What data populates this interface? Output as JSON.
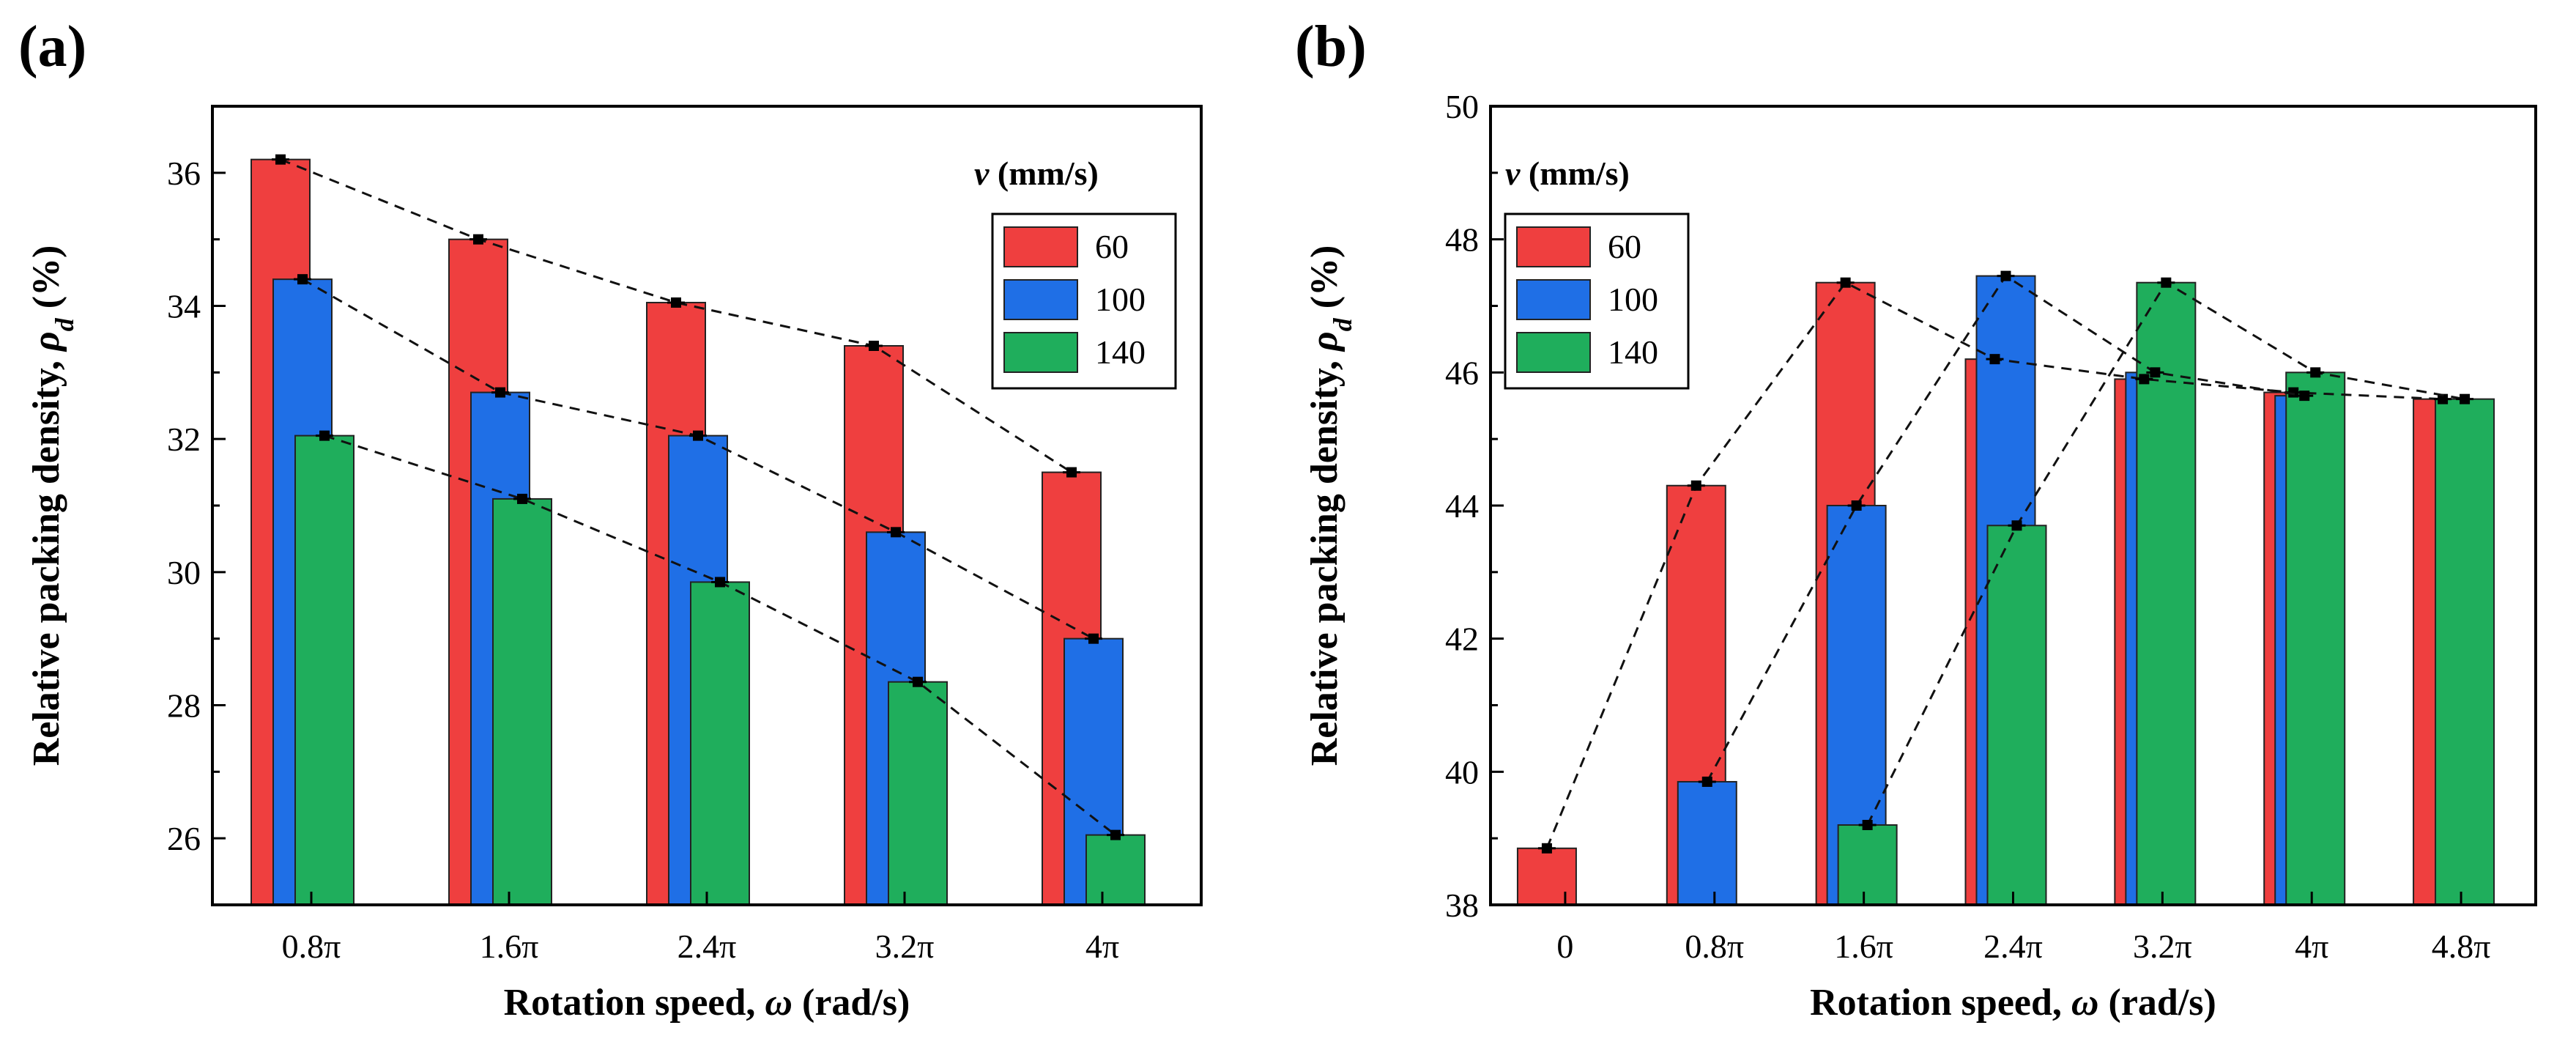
{
  "colors": {
    "v60": "#ef3f3f",
    "v100": "#1f6fe6",
    "v140": "#1fae5c"
  },
  "chart_data": [
    {
      "panel_label": "(a)",
      "type": "bar",
      "xlabel_prefix": "Rotation speed, ",
      "xlabel_symbol": "ω",
      "xlabel_suffix": " (rad/s)",
      "ylabel_prefix": "Relative packing density, ",
      "ylabel_symbol": "ρ",
      "ylabel_sub": "d",
      "ylabel_suffix": " (%)",
      "ylim": [
        25,
        37
      ],
      "yticks": [
        "26",
        "28",
        "30",
        "32",
        "34",
        "36"
      ],
      "categories": [
        "0.8π",
        "1.6π",
        "2.4π",
        "3.2π",
        "4π"
      ],
      "legend_title_symbol": "v",
      "legend_title_suffix": " (mm/s)",
      "legend_position": "top-right",
      "series": [
        {
          "name": "60",
          "values": [
            36.2,
            35.0,
            34.05,
            33.4,
            31.5
          ]
        },
        {
          "name": "100",
          "values": [
            34.4,
            32.7,
            32.05,
            30.6,
            29.0
          ]
        },
        {
          "name": "140",
          "values": [
            32.05,
            31.1,
            29.85,
            28.35,
            26.05
          ]
        }
      ]
    },
    {
      "panel_label": "(b)",
      "type": "bar",
      "xlabel_prefix": "Rotation speed, ",
      "xlabel_symbol": "ω",
      "xlabel_suffix": " (rad/s)",
      "ylabel_prefix": "Relative packing density, ",
      "ylabel_symbol": "ρ",
      "ylabel_sub": "d",
      "ylabel_suffix": " (%)",
      "ylim": [
        38,
        50
      ],
      "yticks": [
        "38",
        "40",
        "42",
        "44",
        "46",
        "48",
        "50"
      ],
      "categories": [
        "0",
        "0.8π",
        "1.6π",
        "2.4π",
        "3.2π",
        "4π",
        "4.8π"
      ],
      "legend_title_symbol": "v",
      "legend_title_suffix": " (mm/s)",
      "legend_position": "top-left",
      "series": [
        {
          "name": "60",
          "values": [
            38.85,
            44.3,
            47.35,
            46.2,
            45.9,
            45.7,
            45.6
          ]
        },
        {
          "name": "100",
          "values": [
            null,
            39.85,
            44.0,
            47.45,
            46.0,
            45.65,
            null
          ]
        },
        {
          "name": "140",
          "values": [
            null,
            null,
            39.2,
            43.7,
            47.35,
            46.0,
            45.6
          ]
        }
      ]
    }
  ]
}
